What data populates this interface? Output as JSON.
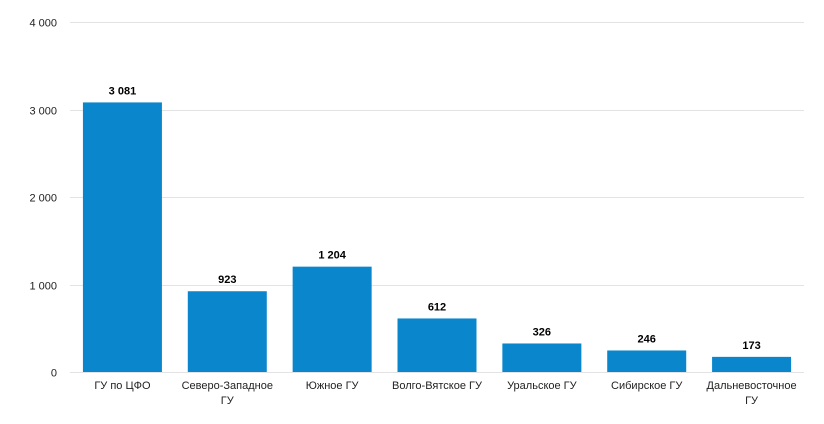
{
  "chart_data": {
    "type": "bar",
    "title": "",
    "xlabel": "",
    "ylabel": "",
    "categories": [
      [
        "ГУ по ЦФО"
      ],
      [
        "Северо-Западное",
        "ГУ"
      ],
      [
        "Южное ГУ"
      ],
      [
        "Волго-Вятское ГУ"
      ],
      [
        "Уральское ГУ"
      ],
      [
        "Сибирское ГУ"
      ],
      [
        "Дальневосточное",
        "ГУ"
      ]
    ],
    "values": [
      3081,
      923,
      1204,
      612,
      326,
      246,
      173
    ],
    "data_labels": [
      "3 081",
      "923",
      "1 204",
      "612",
      "326",
      "246",
      "173"
    ],
    "ylim": [
      0,
      4000
    ],
    "yticks": [
      0,
      1000,
      2000,
      3000,
      4000
    ],
    "ytick_labels": [
      "0",
      "1 000",
      "2 000",
      "3 000",
      "4 000"
    ],
    "grid": true,
    "bar_color": "#0a87cc"
  }
}
